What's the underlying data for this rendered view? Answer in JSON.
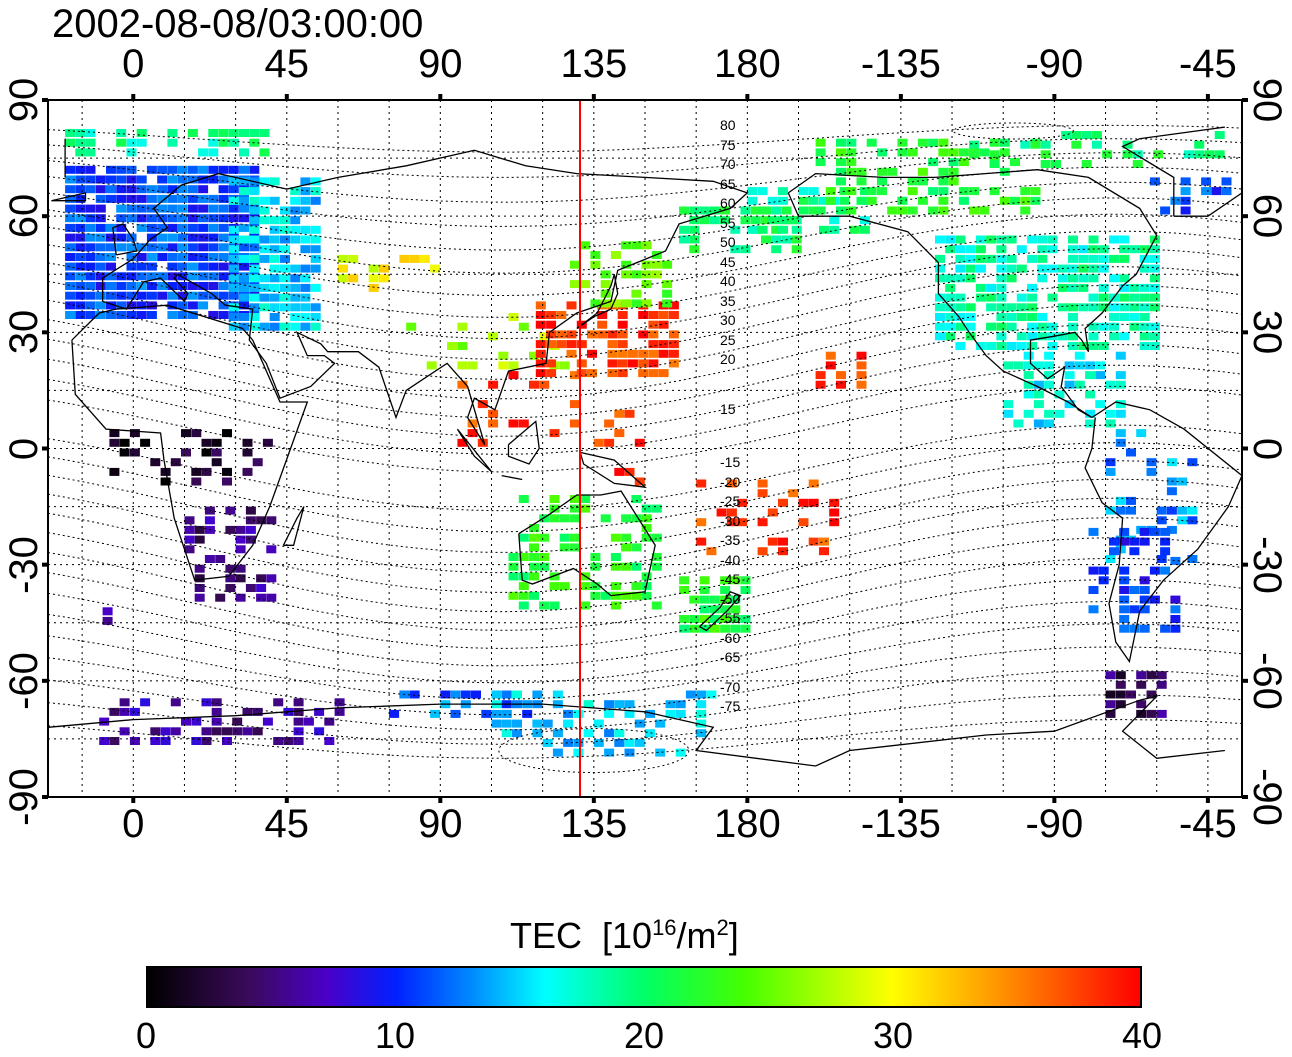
{
  "title": "2002-08-08/03:00:00",
  "x_ticks": [
    "0",
    "45",
    "90",
    "135",
    "180",
    "-135",
    "-90",
    "-45"
  ],
  "y_ticks": [
    "90",
    "60",
    "30",
    "0",
    "-30",
    "-60",
    "-90"
  ],
  "colorbar": {
    "label": "TEC",
    "unit_base": "[10",
    "unit_exp": "16",
    "unit_mid": "/m",
    "unit_exp2": "2",
    "unit_end": "]",
    "ticks": [
      "0",
      "10",
      "20",
      "30",
      "40"
    ],
    "range": [
      0,
      40
    ],
    "colors": [
      "#000000",
      "#4a00c8",
      "#0020ff",
      "#00ffff",
      "#00ff66",
      "#ffff00",
      "#ff8800",
      "#ff0000"
    ]
  },
  "contour_labels_north": [
    "80",
    "75",
    "70",
    "65",
    "60",
    "55",
    "50",
    "45",
    "40",
    "35",
    "30",
    "25",
    "20",
    "15"
  ],
  "contour_labels_south": [
    "-15",
    "-20",
    "-25",
    "-30",
    "-35",
    "-40",
    "-45",
    "-50",
    "-55",
    "-60",
    "-65",
    "-70",
    "-75"
  ],
  "map": {
    "lon_range": [
      -25,
      325
    ],
    "lat_range": [
      -90,
      90
    ],
    "marker_longitude": 135,
    "marker_color": "#ff0000",
    "grid": true,
    "grid_style": "dotted"
  }
}
